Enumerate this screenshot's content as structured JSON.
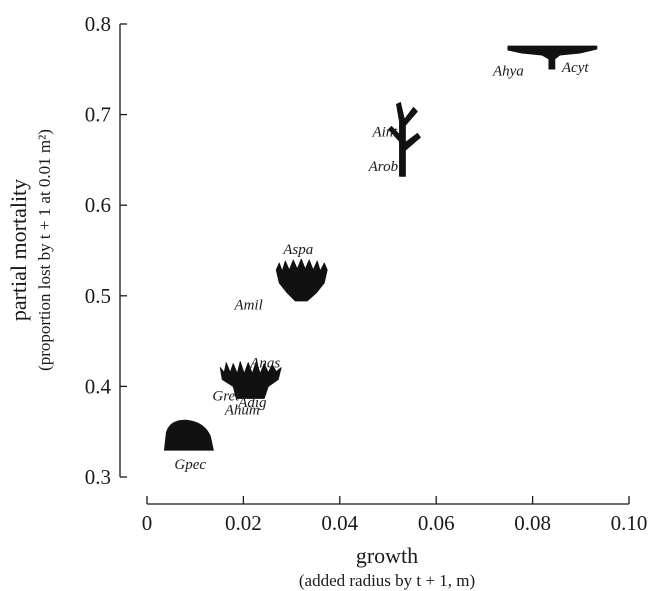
{
  "chart_data": {
    "type": "scatter",
    "xlabel": "growth",
    "xlabel_sub": "(added radius by t + 1, m)",
    "ylabel": "partial mortality",
    "ylabel_sub": "(proportion lost by t + 1 at 0.01 m²)",
    "xlim": [
      0,
      0.1
    ],
    "ylim": [
      0.3,
      0.8
    ],
    "xticks": [
      0,
      0.02,
      0.04,
      0.06,
      0.08,
      0.1
    ],
    "xtick_labels": [
      "0",
      "0.02",
      "0.04",
      "0.06",
      "0.08",
      "0.10"
    ],
    "yticks": [
      0.3,
      0.4,
      0.5,
      0.6,
      0.7,
      0.8
    ],
    "ytick_labels": [
      "0.3",
      "0.4",
      "0.5",
      "0.6",
      "0.7",
      "0.8"
    ],
    "grid": false,
    "points": [
      {
        "label": "Acyt",
        "x": 0.084,
        "y": 0.769,
        "shape": "tabular"
      },
      {
        "label": "Ahya",
        "x": 0.078,
        "y": 0.753,
        "shape": "none"
      },
      {
        "label": "Aint",
        "x": 0.053,
        "y": 0.687,
        "shape": "branching"
      },
      {
        "label": "Arob",
        "x": 0.052,
        "y": 0.662,
        "shape": "none"
      },
      {
        "label": "Aspa",
        "x": 0.032,
        "y": 0.523,
        "shape": "corymbose"
      },
      {
        "label": "Amil",
        "x": 0.031,
        "y": 0.505,
        "shape": "none"
      },
      {
        "label": "Anas",
        "x": 0.021,
        "y": 0.412,
        "shape": "digitate"
      },
      {
        "label": "Gret",
        "x": 0.02,
        "y": 0.4,
        "shape": "none"
      },
      {
        "label": "Adig",
        "x": 0.021,
        "y": 0.397,
        "shape": "none"
      },
      {
        "label": "Ahum",
        "x": 0.018,
        "y": 0.39,
        "shape": "none"
      },
      {
        "label": "Gpec",
        "x": 0.009,
        "y": 0.345,
        "shape": "massive"
      }
    ]
  }
}
